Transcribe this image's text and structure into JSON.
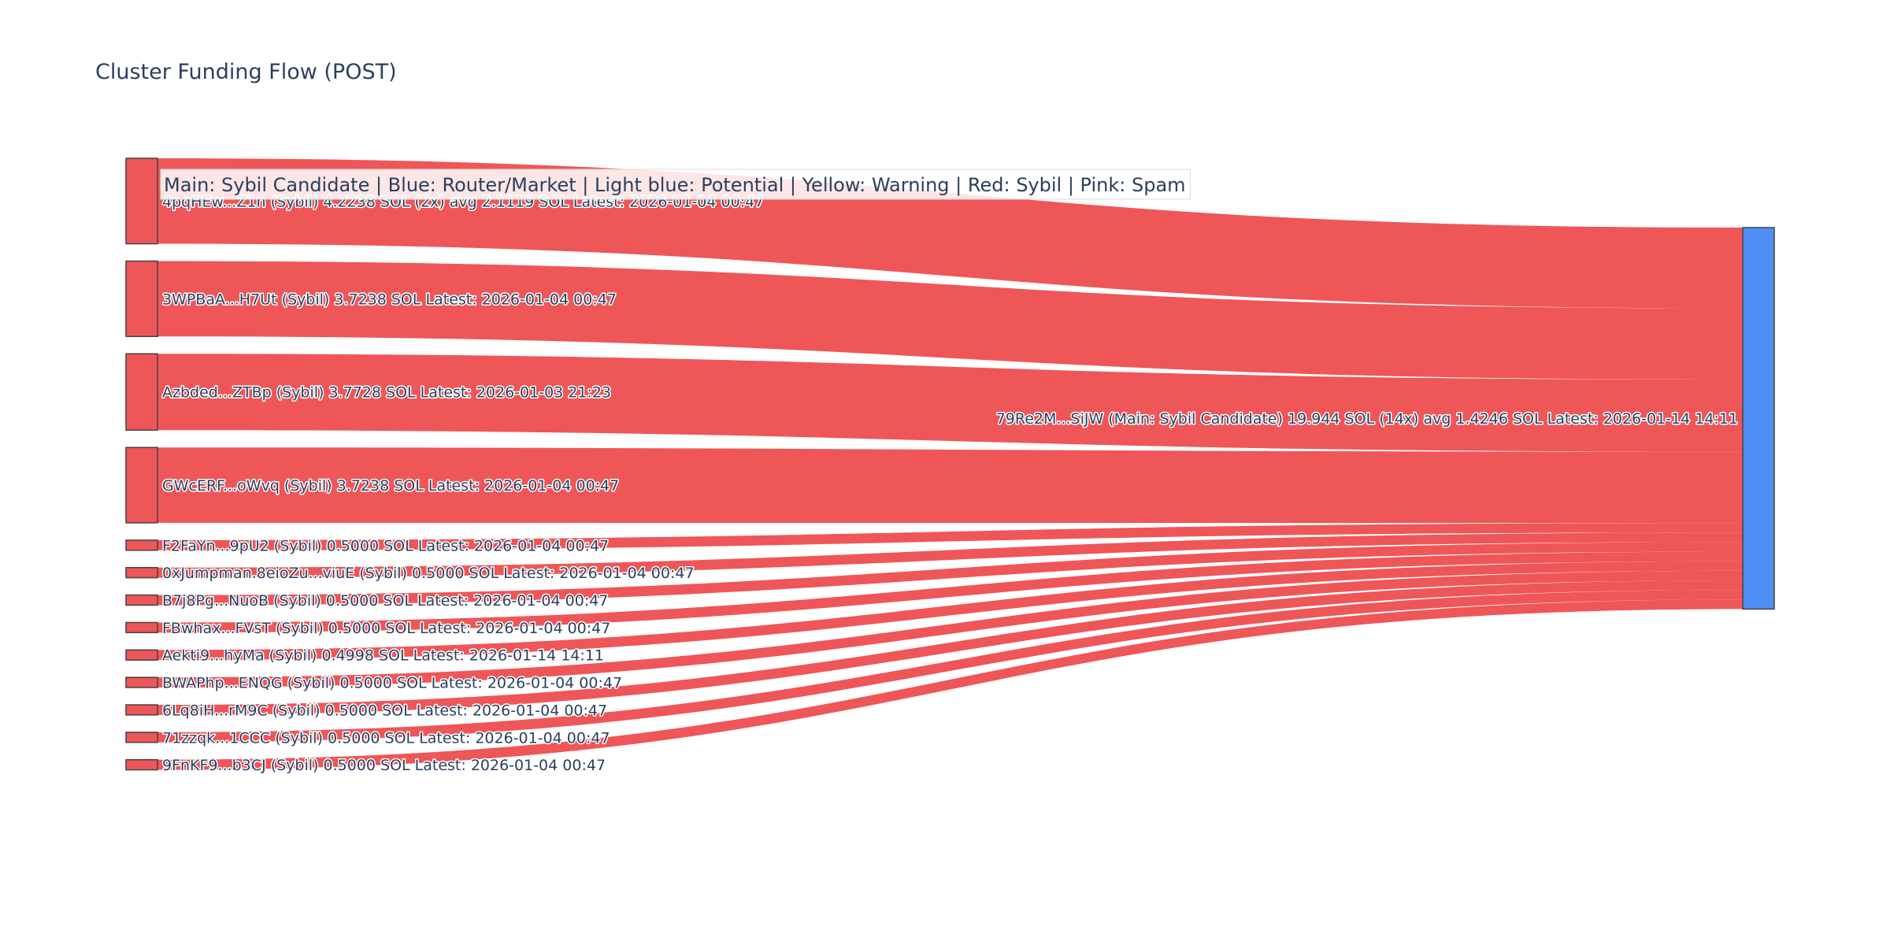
{
  "chart_data": {
    "type": "sankey",
    "title": "Cluster Funding Flow (POST)",
    "legend": "Main: Sybil Candidate  |  Blue: Router/Market | Light blue: Potential | Yellow: Warning | Red: Sybil | Pink: Spam",
    "colors": {
      "sybil": "#ef5658",
      "main": "#4f8ef5",
      "node_border": "#444444",
      "legend_bg": "#ffffff"
    },
    "target": {
      "id": "79Re2M...SiJW",
      "label": "79Re2M...SiJW (Main: Sybil Candidate) 19.944 SOL (14x) avg 1.4246 SOL Latest: 2026-01-14 14:11",
      "value": 19.944
    },
    "sources": [
      {
        "id": "4pqHEw...Z1n",
        "label": "4pqHEw...Z1n (Sybil) 4.2238 SOL (2x) avg 2.1119 SOL Latest: 2026-01-04 00:47",
        "value": 4.2238,
        "category": "sybil"
      },
      {
        "id": "3WPBaA...H7Ut",
        "label": "3WPBaA...H7Ut (Sybil) 3.7238 SOL Latest: 2026-01-04 00:47",
        "value": 3.7238,
        "category": "sybil"
      },
      {
        "id": "Azbded...ZTBp",
        "label": "Azbded...ZTBp (Sybil) 3.7728 SOL Latest: 2026-01-03 21:23",
        "value": 3.7728,
        "category": "sybil"
      },
      {
        "id": "GWcERF...oWvq",
        "label": "GWcERF...oWvq (Sybil) 3.7238 SOL Latest: 2026-01-04 00:47",
        "value": 3.7238,
        "category": "sybil"
      },
      {
        "id": "F2FaYn...9pU2",
        "label": "F2FaYn...9pU2 (Sybil) 0.5000 SOL Latest: 2026-01-04 00:47",
        "value": 0.5,
        "category": "sybil"
      },
      {
        "id": "0xJumpman.8eioZu...viuE",
        "label": "0xJumpman.8eioZu...viuE (Sybil) 0.5000 SOL Latest: 2026-01-04 00:47",
        "value": 0.5,
        "category": "sybil"
      },
      {
        "id": "B7j8Pg...NuoB",
        "label": "B7j8Pg...NuoB (Sybil) 0.5000 SOL Latest: 2026-01-04 00:47",
        "value": 0.5,
        "category": "sybil"
      },
      {
        "id": "FBwhax...FVsT",
        "label": "FBwhax...FVsT (Sybil) 0.5000 SOL Latest: 2026-01-04 00:47",
        "value": 0.5,
        "category": "sybil"
      },
      {
        "id": "Aekti9...hyMa",
        "label": "Aekti9...hyMa (Sybil) 0.4998 SOL Latest: 2026-01-14 14:11",
        "value": 0.4998,
        "category": "sybil"
      },
      {
        "id": "BWAPhp...ENQG",
        "label": "BWAPhp...ENQG (Sybil) 0.5000 SOL Latest: 2026-01-04 00:47",
        "value": 0.5,
        "category": "sybil"
      },
      {
        "id": "6Lq8iH...rM9C",
        "label": "6Lq8iH...rM9C (Sybil) 0.5000 SOL Latest: 2026-01-04 00:47",
        "value": 0.5,
        "category": "sybil"
      },
      {
        "id": "71zzqk...1CCC",
        "label": "71zzqk...1CCC (Sybil) 0.5000 SOL Latest: 2026-01-04 00:47",
        "value": 0.5,
        "category": "sybil"
      },
      {
        "id": "9FnKF9...b3CJ",
        "label": "9FnKF9...b3CJ (Sybil) 0.5000 SOL Latest: 2026-01-04 00:47",
        "value": 0.5,
        "category": "sybil"
      }
    ]
  }
}
